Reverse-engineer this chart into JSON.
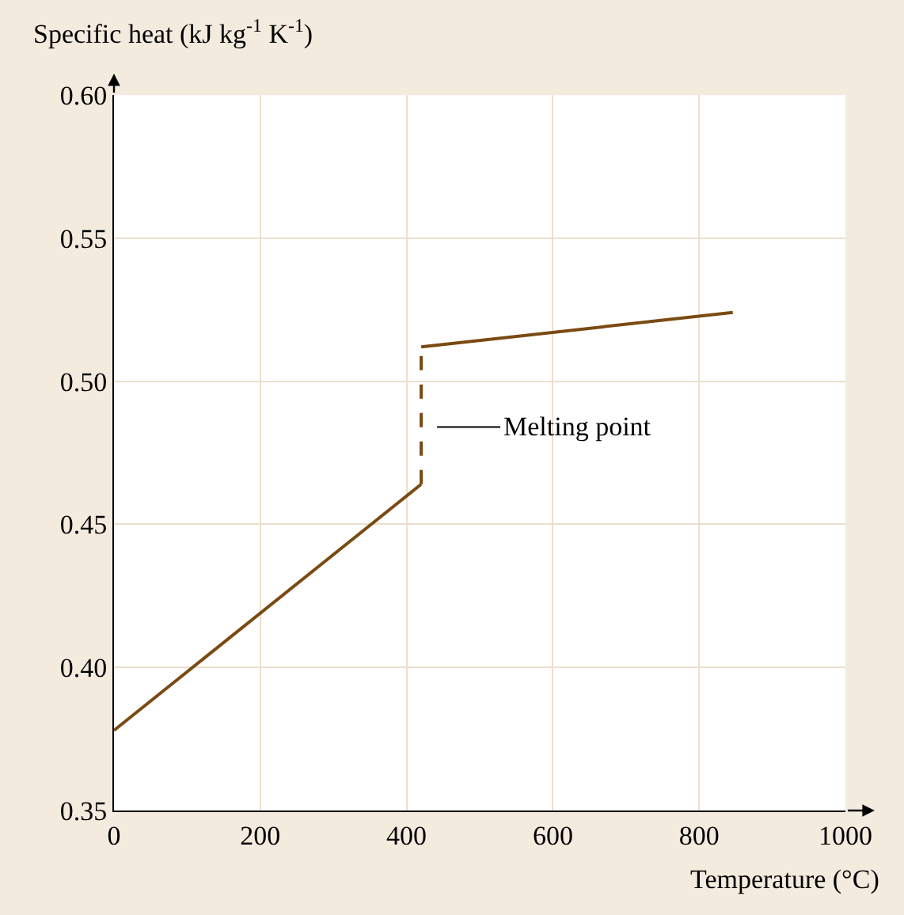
{
  "chart_data": {
    "type": "line",
    "xlabel": "Temperature (°C)",
    "ylabel": "Specific heat (kJ kg$^{-1}$ K$^{-1}$)",
    "xlim": [
      0,
      1000
    ],
    "xticks": [
      0,
      200,
      400,
      600,
      800,
      1000
    ],
    "ylim": [
      0.35,
      0.6
    ],
    "yticks": [
      {
        "value": 0.35,
        "label": "0.35"
      },
      {
        "value": 0.4,
        "label": "0.40"
      },
      {
        "value": 0.45,
        "label": "0.45"
      },
      {
        "value": 0.5,
        "label": "0.50"
      },
      {
        "value": 0.55,
        "label": "0.55"
      },
      {
        "value": 0.6,
        "label": "0.60"
      }
    ],
    "grid": true,
    "series": [
      {
        "color": "#7a4a12",
        "x": [
          0,
          420
        ],
        "values": [
          0.378,
          0.464
        ],
        "line_style": "solid"
      },
      {
        "color": "#7a4a12",
        "x": [
          420,
          420
        ],
        "values": [
          0.464,
          0.512
        ],
        "line_style": "dashed"
      },
      {
        "color": "#7a4a12",
        "x": [
          420,
          846
        ],
        "values": [
          0.512,
          0.524
        ],
        "line_style": "solid"
      }
    ],
    "annotations": [
      {
        "text": "Melting point",
        "x": 420,
        "y": 0.484
      }
    ]
  }
}
